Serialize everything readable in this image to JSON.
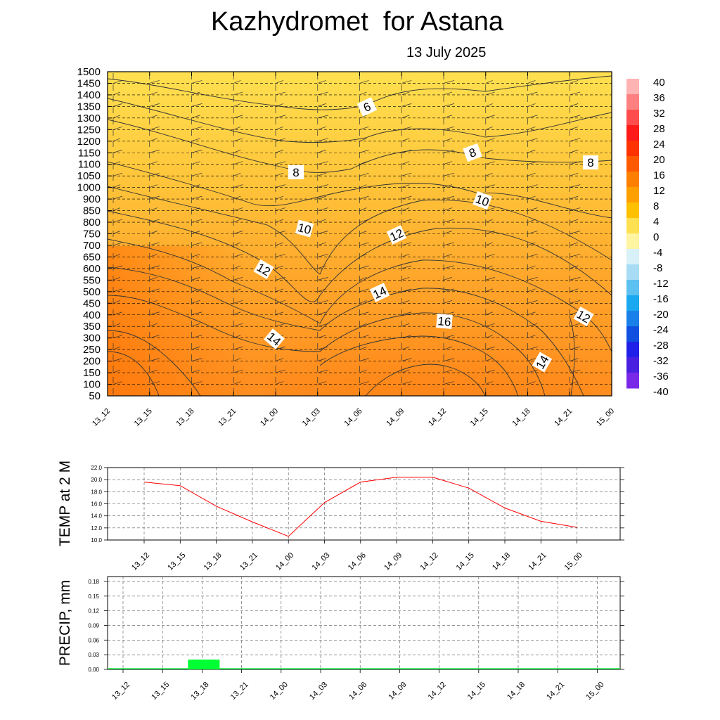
{
  "header": {
    "title": "Kazhydromet  for Astana",
    "subtitle": "13 July 2025"
  },
  "chart_data": [
    {
      "type": "heatmap",
      "title": "Kazhydromet  for Astana",
      "subtitle": "13 July 2025",
      "x_ticks": [
        "13_12",
        "13_15",
        "13_18",
        "13_21",
        "14_00",
        "14_03",
        "14_06",
        "14_09",
        "14_12",
        "14_15",
        "14_18",
        "14_21",
        "15_00"
      ],
      "y_ticks": [
        "50",
        "100",
        "150",
        "200",
        "250",
        "300",
        "350",
        "400",
        "450",
        "500",
        "550",
        "600",
        "650",
        "700",
        "750",
        "800",
        "850",
        "900",
        "1000",
        "1050",
        "1100",
        "1150",
        "1200",
        "1250",
        "1300",
        "1350",
        "1400",
        "1450",
        "1500"
      ],
      "colorbar": {
        "labels": [
          "40",
          "36",
          "32",
          "28",
          "24",
          "20",
          "16",
          "12",
          "8",
          "4",
          "0",
          "-4",
          "-8",
          "-12",
          "-16",
          "-20",
          "-24",
          "-28",
          "-32",
          "-36",
          "-40"
        ],
        "range": [
          -40,
          40
        ]
      },
      "contour_labels": [
        "6",
        "8",
        "8",
        "8",
        "10",
        "10",
        "12",
        "12",
        "12",
        "14",
        "14",
        "14",
        "16"
      ],
      "overlays": [
        "temperature contours",
        "wind barbs"
      ]
    },
    {
      "type": "line",
      "ylabel": "TEMP at 2 M",
      "ylim": [
        10,
        22
      ],
      "y_ticks": [
        "10.0",
        "12.0",
        "14.0",
        "16.0",
        "18.0",
        "20.0",
        "22.0"
      ],
      "categories": [
        "13_12",
        "13_15",
        "13_18",
        "13_21",
        "14_00",
        "14_03",
        "14_06",
        "14_09",
        "14_12",
        "14_15",
        "14_18",
        "14_21",
        "15_00"
      ],
      "values": [
        19.6,
        19.0,
        15.6,
        13.0,
        10.6,
        16.2,
        19.6,
        20.4,
        20.4,
        18.6,
        15.3,
        13.1,
        12.1
      ],
      "color": "#ff0000",
      "grid": true
    },
    {
      "type": "bar",
      "ylabel": "PRECIP, mm",
      "ylim": [
        0,
        0.19
      ],
      "y_ticks": [
        "0.00",
        "0.03",
        "0.06",
        "0.09",
        "0.12",
        "0.15",
        "0.18"
      ],
      "categories": [
        "13_12",
        "13_15",
        "13_18",
        "13_21",
        "14_00",
        "14_03",
        "14_06",
        "14_09",
        "14_12",
        "14_15",
        "14_18",
        "14_21",
        "15_00"
      ],
      "values": [
        0,
        0,
        0.02,
        0,
        0,
        0,
        0,
        0,
        0,
        0,
        0,
        0,
        0
      ],
      "color": "#00ff33",
      "grid": true
    }
  ]
}
